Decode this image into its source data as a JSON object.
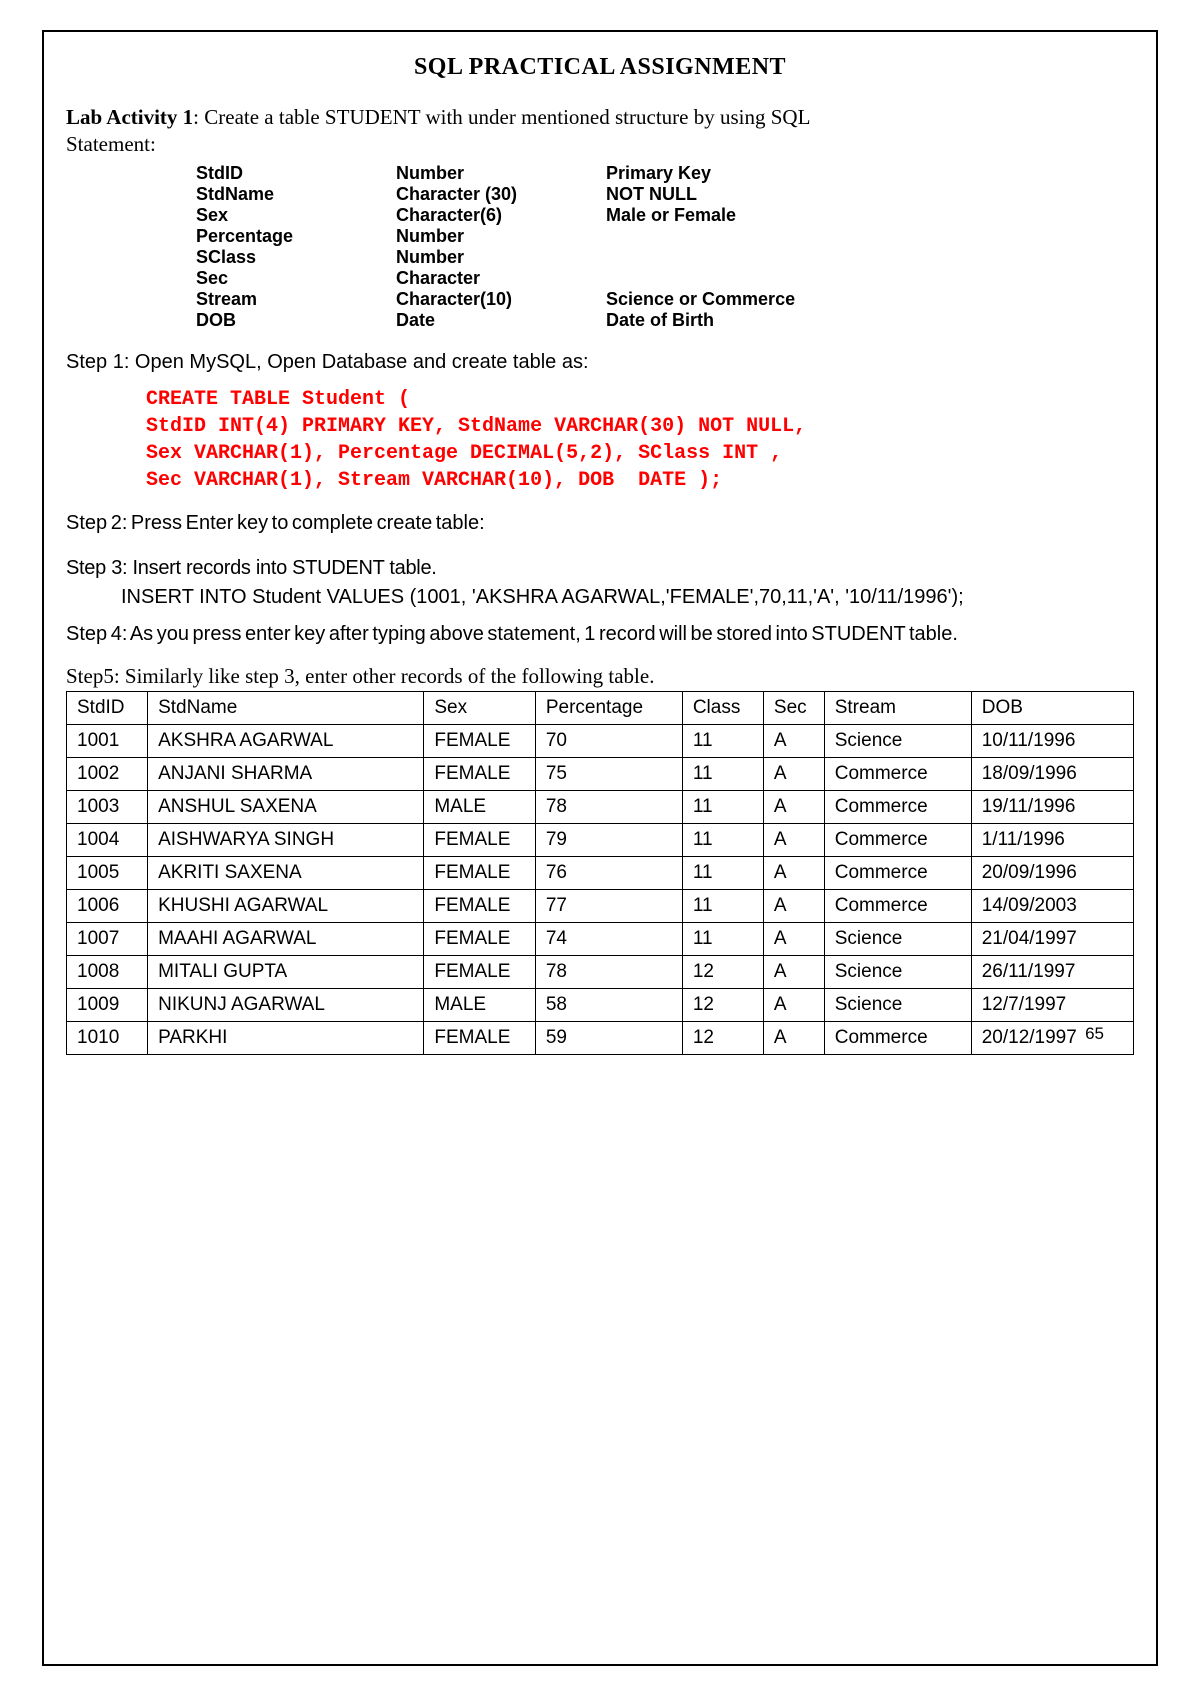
{
  "title": "SQL PRACTICAL ASSIGNMENT",
  "lab": {
    "label": "Lab Activity 1",
    "desc_part1": ": Create a table STUDENT with under mentioned structure by using SQL",
    "desc_part2": "Statement:"
  },
  "structure": [
    {
      "field": "StdID",
      "type": "Number",
      "constraint": "Primary Key"
    },
    {
      "field": "StdName",
      "type": "Character (30)",
      "constraint": "NOT NULL"
    },
    {
      "field": "Sex",
      "type": "Character(6)",
      "constraint": "Male or Female"
    },
    {
      "field": "Percentage",
      "type": "Number",
      "constraint": ""
    },
    {
      "field": "SClass",
      "type": "Number",
      "constraint": ""
    },
    {
      "field": "Sec",
      "type": "Character",
      "constraint": ""
    },
    {
      "field": "Stream",
      "type": "Character(10)",
      "constraint": "Science or Commerce"
    },
    {
      "field": "DOB",
      "type": "Date",
      "constraint": "Date of Birth"
    }
  ],
  "step1": "Step 1: Open MySQL, Open Database and create table as:",
  "sql": "CREATE TABLE Student (\nStdID INT(4) PRIMARY KEY, StdName VARCHAR(30) NOT NULL,\nSex VARCHAR(1), Percentage DECIMAL(5,2), SClass INT ,\nSec VARCHAR(1), Stream VARCHAR(10), DOB  DATE );",
  "step2": "Step 2:  Press Enter key to complete create table:",
  "step3": "Step 3:  Insert records into STUDENT table.",
  "insert": "INSERT INTO Student VALUES (1001, 'AKSHRA AGARWAL,'FEMALE',70,11,'A', '10/11/1996');",
  "step4": "Step 4:  As you press enter key after typing above statement, 1 record will be stored into STUDENT table.",
  "step5": "Step5: Similarly like step 3, enter other records of the following table.",
  "columns": [
    "StdID",
    "StdName",
    "Sex",
    "Percentage",
    "Class",
    "Sec",
    "Stream",
    "DOB"
  ],
  "rows": [
    [
      "1001",
      "AKSHRA AGARWAL",
      "FEMALE",
      "70",
      "11",
      "A",
      "Science",
      "10/11/1996"
    ],
    [
      "1002",
      "ANJANI SHARMA",
      "FEMALE",
      "75",
      "11",
      "A",
      "Commerce",
      "18/09/1996"
    ],
    [
      "1003",
      "ANSHUL SAXENA",
      "MALE",
      "78",
      "11",
      "A",
      "Commerce",
      "19/11/1996"
    ],
    [
      "1004",
      "AISHWARYA SINGH",
      "FEMALE",
      "79",
      "11",
      "A",
      "Commerce",
      "1/11/1996"
    ],
    [
      "1005",
      "AKRITI SAXENA",
      "FEMALE",
      "76",
      "11",
      "A",
      "Commerce",
      "20/09/1996"
    ],
    [
      "1006",
      "KHUSHI AGARWAL",
      "FEMALE",
      "77",
      "11",
      "A",
      "Commerce",
      "14/09/2003"
    ],
    [
      "1007",
      "MAAHI AGARWAL",
      "FEMALE",
      "74",
      "11",
      "A",
      "Science",
      "21/04/1997"
    ],
    [
      "1008",
      "MITALI GUPTA",
      "FEMALE",
      "78",
      "12",
      "A",
      "Science",
      "26/11/1997"
    ],
    [
      "1009",
      "NIKUNJ AGARWAL",
      "MALE",
      "58",
      "12",
      "A",
      "Science",
      "12/7/1997"
    ],
    [
      "1010",
      "PARKHI",
      "FEMALE",
      "59",
      "12",
      "A",
      "Commerce",
      "20/12/1997"
    ]
  ],
  "right_aligned_dob_rows": [
    3,
    8
  ],
  "page_number": "65"
}
